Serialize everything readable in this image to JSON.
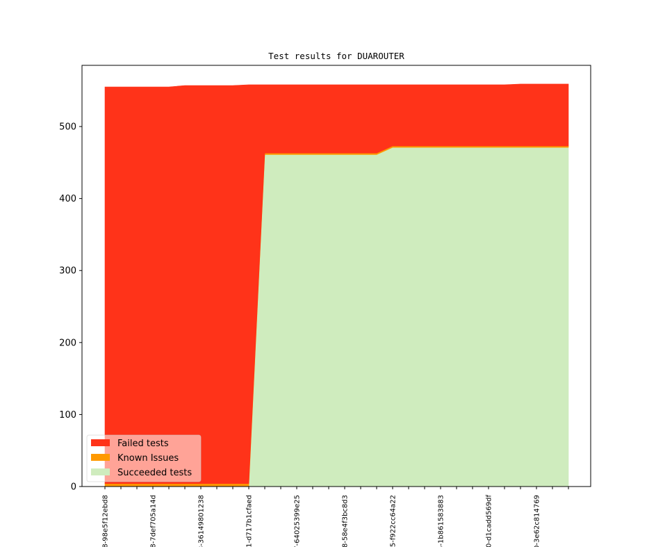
{
  "chart_data": {
    "type": "area",
    "title": "Test results for DUAROUTER",
    "xlabel": "",
    "ylabel": "",
    "ylim": [
      0,
      585
    ],
    "yticks": [
      0,
      100,
      200,
      300,
      400,
      500
    ],
    "x_count": 30,
    "xtick_labels": [
      {
        "index": 0,
        "label": "8-98e5f12ebd8"
      },
      {
        "index": 3,
        "label": "8-7def705a14d"
      },
      {
        "index": 6,
        "label": "3-36149801238"
      },
      {
        "index": 9,
        "label": "1-d717b1cfaed"
      },
      {
        "index": 12,
        "label": "7-64025399e25"
      },
      {
        "index": 15,
        "label": "8-58e4f3bc8d3"
      },
      {
        "index": 18,
        "label": "5-f922cc64a22"
      },
      {
        "index": 21,
        "label": "5-1b861583883"
      },
      {
        "index": 24,
        "label": "0-d1cadd569df"
      },
      {
        "index": 27,
        "label": "0-3e62c814769"
      }
    ],
    "series": [
      {
        "name": "Succeeded tests",
        "color": "#cfecbe",
        "values": [
          0,
          0,
          0,
          0,
          0,
          0,
          0,
          0,
          0,
          0,
          461,
          461,
          461,
          461,
          461,
          461,
          461,
          461,
          471,
          471,
          471,
          471,
          471,
          471,
          471,
          471,
          471,
          471,
          471,
          471
        ]
      },
      {
        "name": "Known Issues",
        "color": "#ff9900",
        "values": [
          4,
          4,
          4,
          4,
          4,
          4,
          4,
          4,
          4,
          4,
          2,
          2,
          2,
          2,
          2,
          2,
          2,
          2,
          2,
          2,
          2,
          2,
          2,
          2,
          2,
          2,
          2,
          2,
          2,
          2
        ]
      },
      {
        "name": "Failed tests",
        "color": "#ff3319",
        "values": [
          551,
          551,
          551,
          551,
          551,
          553,
          553,
          553,
          553,
          554,
          95,
          95,
          95,
          95,
          95,
          95,
          95,
          95,
          85,
          85,
          85,
          85,
          85,
          85,
          85,
          85,
          86,
          86,
          86,
          86
        ]
      }
    ],
    "legend": {
      "position": "lower-left",
      "entries": [
        "Failed tests",
        "Known Issues",
        "Succeeded tests"
      ]
    }
  }
}
